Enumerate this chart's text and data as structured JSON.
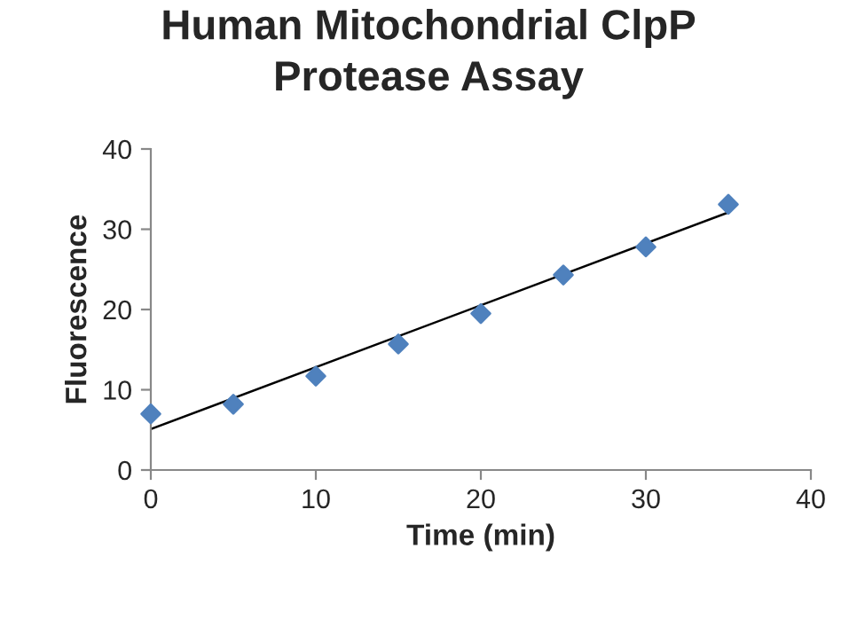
{
  "chart_data": {
    "type": "scatter",
    "title": "Human Mitochondrial ClpP\nProtease Assay",
    "xlabel": "Time (min)",
    "ylabel": "Fluorescence",
    "series": [
      {
        "color": "#4f81bd",
        "marker": "diamond",
        "x": [
          0,
          5,
          10,
          15,
          20,
          25,
          30,
          35
        ],
        "values": [
          7.0,
          8.2,
          11.7,
          15.7,
          19.5,
          24.3,
          27.8,
          33.1
        ]
      },
      {
        "type": "line",
        "color": "#000000",
        "x": [
          0,
          35
        ],
        "values": [
          5.1,
          32.1
        ]
      }
    ],
    "xlim": [
      0,
      40
    ],
    "xticks": [
      0,
      10,
      20,
      30,
      40
    ],
    "ylim": [
      0,
      40
    ],
    "yticks": [
      0,
      10,
      20,
      30,
      40
    ],
    "grid": false,
    "legend": false
  }
}
